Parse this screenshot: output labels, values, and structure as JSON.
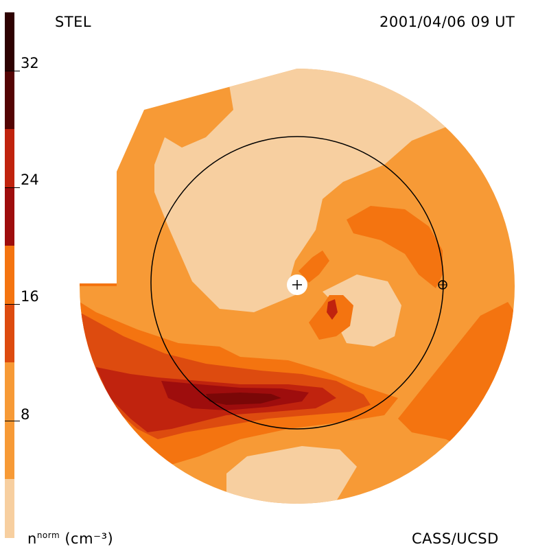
{
  "header": {
    "title": "STEL",
    "timestamp": "2001/04/06 09 UT"
  },
  "footer": {
    "units_prefix": "n",
    "units_sup": "norm",
    "units_suffix": "(cm⁻³)",
    "credit": "CASS/UCSD"
  },
  "colorbar": {
    "ticks": [
      "32",
      "24",
      "16",
      "8"
    ],
    "levels": [
      {
        "from": 0,
        "to": 4,
        "color": "#f7cfa0"
      },
      {
        "from": 4,
        "to": 8,
        "color": "#f79a36"
      },
      {
        "from": 8,
        "to": 12,
        "color": "#f47410"
      },
      {
        "from": 12,
        "to": 16,
        "color": "#dd4b0f"
      },
      {
        "from": 16,
        "to": 20,
        "color": "#c0230e"
      },
      {
        "from": 20,
        "to": 24,
        "color": "#9e0d0d"
      },
      {
        "from": 24,
        "to": 28,
        "color": "#7a0707"
      },
      {
        "from": 28,
        "to": 32,
        "color": "#540404"
      },
      {
        "from": 32,
        "to": 36,
        "color": "#2e0202"
      }
    ]
  },
  "map": {
    "markers": [
      "sun-marker",
      "earth-marker"
    ],
    "reference_circle": "1-AU orbit"
  }
}
